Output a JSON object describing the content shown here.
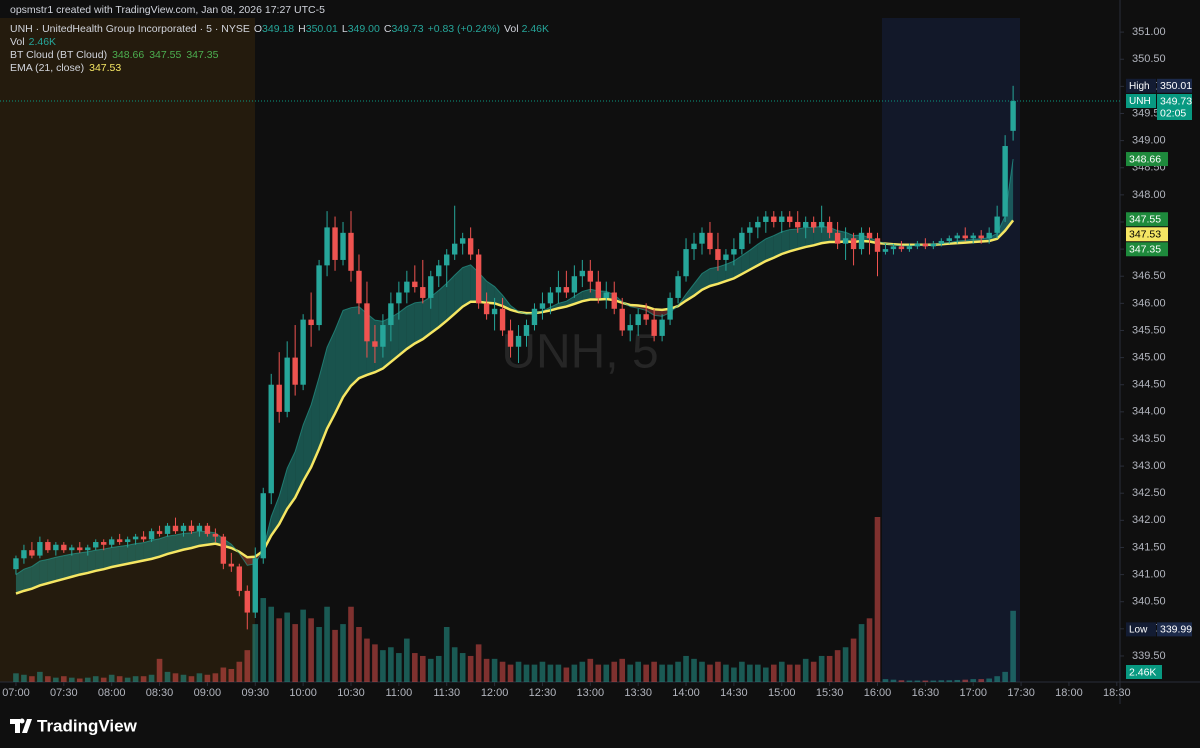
{
  "header": {
    "credit": "opsmstr1 created with TradingView.com, Jan 08, 2026 17:27 UTC-5"
  },
  "legend": {
    "symbol": "UNH · UnitedHealth Group Incorporated · 5 · NYSE",
    "ohlc": [
      {
        "label": "O",
        "value": "349.18"
      },
      {
        "label": "H",
        "value": "350.01"
      },
      {
        "label": "L",
        "value": "349.00"
      },
      {
        "label": "C",
        "value": "349.73"
      }
    ],
    "change": "+0.83 (+0.24%)",
    "vol_label": "Vol",
    "vol": "2.46K",
    "cloud_values": [
      "348.66",
      "347.55",
      "347.35"
    ],
    "ema_value": "347.53"
  },
  "footer": {
    "brand": "TradingView"
  },
  "chart_data": {
    "type": "candlestick",
    "title": "UNH, 5",
    "up_color": "#26a69a",
    "down_color": "#ef5350",
    "grid": false,
    "xlim": [
      "06:50",
      "18:32"
    ],
    "xticks": [
      "07:00",
      "07:30",
      "08:00",
      "08:30",
      "09:00",
      "09:30",
      "10:00",
      "10:30",
      "11:00",
      "11:30",
      "12:00",
      "12:30",
      "13:00",
      "13:30",
      "14:00",
      "14:30",
      "15:00",
      "15:30",
      "16:00",
      "16:30",
      "17:00",
      "17:30",
      "18:00",
      "18:30"
    ],
    "ylim": [
      339.02,
      351.26
    ],
    "yticks": [
      {
        "value": 339.5,
        "label": "339.50"
      },
      {
        "value": 340,
        "label": "340.00"
      },
      {
        "value": 340.5,
        "label": "340.50"
      },
      {
        "value": 341,
        "label": "341.00"
      },
      {
        "value": 341.5,
        "label": "341.50"
      },
      {
        "value": 342,
        "label": "342.00"
      },
      {
        "value": 342.5,
        "label": "342.50"
      },
      {
        "value": 343,
        "label": "343.00"
      },
      {
        "value": 343.5,
        "label": "343.50"
      },
      {
        "value": 344,
        "label": "344.00"
      },
      {
        "value": 344.5,
        "label": "344.50"
      },
      {
        "value": 345,
        "label": "345.00"
      },
      {
        "value": 345.5,
        "label": "345.50"
      },
      {
        "value": 346,
        "label": "346.00"
      },
      {
        "value": 346.5,
        "label": "346.50"
      },
      {
        "value": 347,
        "label": "347.00"
      },
      {
        "value": 347.5,
        "label": "347.50"
      },
      {
        "value": 348,
        "label": "348.00"
      },
      {
        "value": 348.5,
        "label": "348.50"
      },
      {
        "value": 349,
        "label": "349.00"
      },
      {
        "value": 349.5,
        "label": "349.50"
      },
      {
        "value": 350,
        "label": "350.00"
      },
      {
        "value": 350.5,
        "label": "350.50"
      },
      {
        "value": 351,
        "label": "351.00"
      }
    ],
    "x": [
      "07:00",
      "07:05",
      "07:10",
      "07:15",
      "07:20",
      "07:25",
      "07:30",
      "07:35",
      "07:40",
      "07:45",
      "07:50",
      "07:55",
      "08:00",
      "08:05",
      "08:10",
      "08:15",
      "08:20",
      "08:25",
      "08:30",
      "08:35",
      "08:40",
      "08:45",
      "08:50",
      "08:55",
      "09:00",
      "09:05",
      "09:10",
      "09:15",
      "09:20",
      "09:25",
      "09:30",
      "09:35",
      "09:40",
      "09:45",
      "09:50",
      "09:55",
      "10:00",
      "10:05",
      "10:10",
      "10:15",
      "10:20",
      "10:25",
      "10:30",
      "10:35",
      "10:40",
      "10:45",
      "10:50",
      "10:55",
      "11:00",
      "11:05",
      "11:10",
      "11:15",
      "11:20",
      "11:25",
      "11:30",
      "11:35",
      "11:40",
      "11:45",
      "11:50",
      "11:55",
      "12:00",
      "12:05",
      "12:10",
      "12:15",
      "12:20",
      "12:25",
      "12:30",
      "12:35",
      "12:40",
      "12:45",
      "12:50",
      "12:55",
      "13:00",
      "13:05",
      "13:10",
      "13:15",
      "13:20",
      "13:25",
      "13:30",
      "13:35",
      "13:40",
      "13:45",
      "13:50",
      "13:55",
      "14:00",
      "14:05",
      "14:10",
      "14:15",
      "14:20",
      "14:25",
      "14:30",
      "14:35",
      "14:40",
      "14:45",
      "14:50",
      "14:55",
      "15:00",
      "15:05",
      "15:10",
      "15:15",
      "15:20",
      "15:25",
      "15:30",
      "15:35",
      "15:40",
      "15:45",
      "15:50",
      "15:55",
      "16:00",
      "16:05",
      "16:10",
      "16:15",
      "16:20",
      "16:25",
      "16:30",
      "16:35",
      "16:40",
      "16:45",
      "16:50",
      "16:55",
      "17:00",
      "17:05",
      "17:10",
      "17:15",
      "17:20",
      "17:25"
    ],
    "open": [
      341.1,
      341.3,
      341.45,
      341.35,
      341.6,
      341.45,
      341.55,
      341.45,
      341.5,
      341.45,
      341.5,
      341.6,
      341.55,
      341.65,
      341.6,
      341.65,
      341.7,
      341.65,
      341.8,
      341.75,
      341.9,
      341.8,
      341.9,
      341.8,
      341.9,
      341.75,
      341.7,
      341.2,
      341.15,
      340.7,
      340.3,
      341.3,
      342.5,
      344.5,
      344.0,
      345.0,
      344.5,
      345.7,
      345.6,
      346.7,
      347.4,
      346.8,
      347.3,
      346.6,
      346.0,
      345.3,
      345.2,
      345.6,
      346.0,
      346.2,
      346.4,
      346.3,
      346.1,
      346.5,
      346.7,
      346.9,
      347.1,
      347.2,
      346.9,
      346.0,
      345.8,
      345.9,
      345.5,
      345.2,
      345.4,
      345.6,
      345.9,
      346.0,
      346.2,
      346.3,
      346.2,
      346.5,
      346.6,
      346.4,
      346.1,
      346.2,
      345.9,
      345.5,
      345.6,
      345.8,
      345.7,
      345.4,
      345.7,
      346.1,
      346.5,
      347.0,
      347.1,
      347.3,
      347.0,
      346.8,
      346.9,
      347.0,
      347.3,
      347.4,
      347.5,
      347.6,
      347.5,
      347.6,
      347.5,
      347.4,
      347.5,
      347.4,
      347.5,
      347.3,
      347.1,
      347.2,
      347.0,
      347.3,
      347.2,
      346.95,
      347.0,
      347.05,
      347.0,
      347.05,
      347.1,
      347.05,
      347.1,
      347.15,
      347.2,
      347.25,
      347.2,
      347.25,
      347.2,
      347.3,
      347.6,
      349.18
    ],
    "high": [
      341.35,
      341.55,
      341.6,
      341.7,
      341.65,
      341.6,
      341.6,
      341.55,
      341.6,
      341.55,
      341.65,
      341.65,
      341.7,
      341.75,
      341.7,
      341.75,
      341.8,
      341.85,
      341.9,
      341.95,
      342.05,
      341.95,
      342.0,
      341.95,
      341.95,
      341.85,
      341.75,
      341.4,
      341.2,
      340.8,
      341.5,
      342.6,
      344.7,
      345.1,
      345.3,
      345.6,
      345.8,
      346.2,
      346.8,
      347.7,
      347.6,
      347.5,
      347.7,
      346.9,
      346.4,
      345.6,
      345.8,
      346.2,
      346.4,
      346.6,
      346.7,
      346.8,
      346.6,
      346.8,
      347.0,
      347.8,
      347.3,
      347.4,
      347.0,
      346.2,
      346.1,
      346.1,
      345.7,
      345.6,
      345.7,
      346.0,
      346.2,
      346.3,
      346.6,
      346.6,
      346.7,
      346.8,
      346.8,
      346.6,
      346.4,
      346.4,
      346.1,
      345.8,
      345.9,
      346.0,
      345.9,
      345.8,
      346.2,
      346.6,
      347.2,
      347.3,
      347.4,
      347.5,
      347.3,
      347.0,
      347.2,
      347.4,
      347.5,
      347.6,
      347.7,
      347.7,
      347.7,
      347.7,
      347.7,
      347.6,
      347.6,
      347.8,
      347.6,
      347.5,
      347.4,
      347.3,
      347.4,
      347.4,
      347.3,
      347.1,
      347.1,
      347.15,
      347.1,
      347.15,
      347.2,
      347.15,
      347.2,
      347.25,
      347.3,
      347.4,
      347.3,
      347.35,
      347.4,
      347.8,
      349.1,
      350.01
    ],
    "low": [
      341.0,
      341.2,
      341.3,
      341.3,
      341.4,
      341.35,
      341.4,
      341.35,
      341.4,
      341.35,
      341.45,
      341.45,
      341.5,
      341.55,
      341.5,
      341.55,
      341.6,
      341.6,
      341.7,
      341.7,
      341.75,
      341.7,
      341.75,
      341.7,
      341.7,
      341.6,
      341.1,
      341.05,
      340.6,
      339.99,
      340.2,
      341.2,
      342.3,
      343.8,
      343.9,
      344.3,
      344.4,
      345.2,
      345.5,
      346.5,
      346.6,
      346.7,
      346.4,
      345.8,
      345.0,
      344.9,
      345.0,
      345.3,
      345.7,
      346.0,
      346.2,
      346.0,
      345.9,
      346.3,
      346.3,
      346.8,
      346.9,
      346.8,
      345.9,
      345.7,
      345.5,
      345.4,
      345.0,
      344.9,
      345.2,
      345.5,
      345.7,
      345.8,
      346.0,
      346.1,
      346.1,
      346.3,
      346.2,
      346.0,
      345.9,
      345.8,
      345.4,
      345.3,
      345.4,
      345.6,
      345.3,
      345.3,
      345.6,
      346.0,
      346.4,
      346.8,
      346.9,
      346.9,
      346.6,
      346.6,
      346.7,
      346.9,
      347.1,
      347.2,
      347.3,
      347.4,
      347.3,
      347.4,
      347.3,
      347.2,
      347.3,
      347.3,
      347.2,
      347.0,
      346.8,
      346.7,
      346.9,
      346.9,
      346.5,
      346.9,
      346.9,
      346.95,
      346.95,
      347.0,
      347.0,
      347.0,
      347.05,
      347.1,
      347.1,
      347.15,
      347.1,
      347.1,
      347.1,
      347.2,
      347.5,
      349.0
    ],
    "close": [
      341.3,
      341.45,
      341.35,
      341.6,
      341.45,
      341.55,
      341.45,
      341.5,
      341.45,
      341.5,
      341.6,
      341.55,
      341.65,
      341.6,
      341.65,
      341.7,
      341.65,
      341.8,
      341.75,
      341.9,
      341.8,
      341.9,
      341.8,
      341.9,
      341.75,
      341.7,
      341.2,
      341.15,
      340.7,
      340.3,
      341.3,
      342.5,
      344.5,
      344.0,
      345.0,
      344.5,
      345.7,
      345.6,
      346.7,
      347.4,
      346.8,
      347.3,
      346.6,
      346.0,
      345.3,
      345.2,
      345.6,
      346.0,
      346.2,
      346.4,
      346.3,
      346.1,
      346.5,
      346.7,
      346.9,
      347.1,
      347.2,
      346.9,
      346.0,
      345.8,
      345.9,
      345.5,
      345.2,
      345.4,
      345.6,
      345.9,
      346.0,
      346.2,
      346.3,
      346.2,
      346.5,
      346.6,
      346.4,
      346.1,
      346.2,
      345.9,
      345.5,
      345.6,
      345.8,
      345.7,
      345.4,
      345.7,
      346.1,
      346.5,
      347.0,
      347.1,
      347.3,
      347.0,
      346.8,
      346.9,
      347.0,
      347.3,
      347.4,
      347.5,
      347.6,
      347.5,
      347.6,
      347.5,
      347.4,
      347.5,
      347.4,
      347.5,
      347.3,
      347.1,
      347.2,
      347.0,
      347.3,
      347.2,
      346.95,
      347.0,
      347.05,
      347.0,
      347.05,
      347.1,
      347.05,
      347.1,
      347.15,
      347.2,
      347.25,
      347.2,
      347.25,
      347.2,
      347.3,
      347.6,
      348.9,
      349.73
    ],
    "volume": [
      0.3,
      0.25,
      0.2,
      0.35,
      0.2,
      0.15,
      0.2,
      0.15,
      0.12,
      0.15,
      0.2,
      0.15,
      0.25,
      0.2,
      0.15,
      0.2,
      0.2,
      0.25,
      0.8,
      0.35,
      0.3,
      0.25,
      0.2,
      0.3,
      0.25,
      0.3,
      0.5,
      0.45,
      0.7,
      1.1,
      2.0,
      2.9,
      2.6,
      2.2,
      2.4,
      2.0,
      2.5,
      2.2,
      1.9,
      2.6,
      1.8,
      2.0,
      2.6,
      1.9,
      1.5,
      1.3,
      1.1,
      1.2,
      1.0,
      1.5,
      1.0,
      0.9,
      0.8,
      0.9,
      1.9,
      1.2,
      1.0,
      0.9,
      1.3,
      0.8,
      0.8,
      0.7,
      0.6,
      0.7,
      0.6,
      0.6,
      0.7,
      0.6,
      0.6,
      0.5,
      0.6,
      0.7,
      0.8,
      0.6,
      0.6,
      0.7,
      0.8,
      0.6,
      0.7,
      0.6,
      0.7,
      0.6,
      0.6,
      0.7,
      0.9,
      0.8,
      0.7,
      0.6,
      0.7,
      0.6,
      0.5,
      0.7,
      0.6,
      0.6,
      0.5,
      0.6,
      0.7,
      0.6,
      0.6,
      0.8,
      0.7,
      0.9,
      0.9,
      1.1,
      1.2,
      1.5,
      2.0,
      2.2,
      5.7,
      0.1,
      0.08,
      0.06,
      0.05,
      0.05,
      0.05,
      0.05,
      0.06,
      0.06,
      0.07,
      0.08,
      0.1,
      0.1,
      0.12,
      0.2,
      0.35,
      2.46
    ],
    "series": [
      {
        "name": "EMA (21, close)",
        "color": "#f5e663",
        "values": [
          340.65,
          340.7,
          340.74,
          340.8,
          340.84,
          340.88,
          340.92,
          340.96,
          341.0,
          341.03,
          341.07,
          341.1,
          341.14,
          341.17,
          341.2,
          341.23,
          341.26,
          341.29,
          341.33,
          341.38,
          341.42,
          341.46,
          341.49,
          341.53,
          341.55,
          341.57,
          341.53,
          341.49,
          341.42,
          341.32,
          341.33,
          341.44,
          341.72,
          341.93,
          342.21,
          342.42,
          342.72,
          342.98,
          343.32,
          343.69,
          343.97,
          344.27,
          344.48,
          344.62,
          344.68,
          344.73,
          344.8,
          344.92,
          345.04,
          345.16,
          345.26,
          345.34,
          345.45,
          345.56,
          345.68,
          345.81,
          345.94,
          346.03,
          346.03,
          346.01,
          346.0,
          345.95,
          345.88,
          345.84,
          345.82,
          345.82,
          345.84,
          345.87,
          345.91,
          345.94,
          345.99,
          346.04,
          346.07,
          346.07,
          346.08,
          346.06,
          346.01,
          345.97,
          345.96,
          345.94,
          345.89,
          345.88,
          345.9,
          345.95,
          346.05,
          346.14,
          346.25,
          346.32,
          346.36,
          346.41,
          346.46,
          346.54,
          346.62,
          346.7,
          346.78,
          346.84,
          346.91,
          346.96,
          347.0,
          347.04,
          347.07,
          347.11,
          347.13,
          347.13,
          347.14,
          347.13,
          347.15,
          347.14,
          347.11,
          347.1,
          347.09,
          347.08,
          347.08,
          347.08,
          347.08,
          347.08,
          347.09,
          347.1,
          347.11,
          347.12,
          347.13,
          347.14,
          347.15,
          347.19,
          347.34,
          347.53
        ]
      },
      {
        "name": "BT Cloud (BT Cloud)",
        "color": "#26a69a",
        "values": [
          341.0,
          341.1,
          341.15,
          341.25,
          341.28,
          341.32,
          341.35,
          341.38,
          341.4,
          341.42,
          341.45,
          341.47,
          341.5,
          341.52,
          341.54,
          341.57,
          341.59,
          341.63,
          341.66,
          341.71,
          341.73,
          341.76,
          341.77,
          341.8,
          341.79,
          341.77,
          341.66,
          341.56,
          341.39,
          341.17,
          341.2,
          341.46,
          342.07,
          342.45,
          342.96,
          343.27,
          343.76,
          344.13,
          344.64,
          345.19,
          345.51,
          345.87,
          345.92,
          345.94,
          345.81,
          345.69,
          345.67,
          345.74,
          345.83,
          345.94,
          346.01,
          346.03,
          346.12,
          346.24,
          346.37,
          346.52,
          346.66,
          346.71,
          346.57,
          346.41,
          346.31,
          346.15,
          345.96,
          345.85,
          345.8,
          345.82,
          345.86,
          345.93,
          346.0,
          346.04,
          346.13,
          346.22,
          346.26,
          346.23,
          346.22,
          346.16,
          346.03,
          345.94,
          345.91,
          345.87,
          345.78,
          345.76,
          345.83,
          345.96,
          346.17,
          346.36,
          346.55,
          346.64,
          346.67,
          346.72,
          346.78,
          346.88,
          346.98,
          347.09,
          347.19,
          347.25,
          347.32,
          347.36,
          347.37,
          347.4,
          347.4,
          347.42,
          347.4,
          347.34,
          347.31,
          347.25,
          347.26,
          347.21,
          347.15,
          347.1,
          347.08,
          347.06,
          347.06,
          347.07,
          347.07,
          347.08,
          347.1,
          347.12,
          347.15,
          347.16,
          347.18,
          347.19,
          347.21,
          347.29,
          347.61,
          348.66
        ]
      }
    ],
    "price_badges": [
      {
        "name": "High",
        "value": 350.01,
        "color": "#1c2a4a"
      },
      {
        "name": "UNH",
        "value": 349.73,
        "sub": "02:05",
        "color": "#089981"
      },
      {
        "value": 348.66,
        "color": "#1e8a3c"
      },
      {
        "value": 347.55,
        "color": "#1e8a3c"
      },
      {
        "value": 347.53,
        "color": "#f5e663"
      },
      {
        "value": 347.35,
        "color": "#1e8a3c"
      },
      {
        "name": "Low",
        "value": 339.99,
        "color": "#1c2a4a"
      }
    ],
    "volume_badge": "2.46K"
  }
}
